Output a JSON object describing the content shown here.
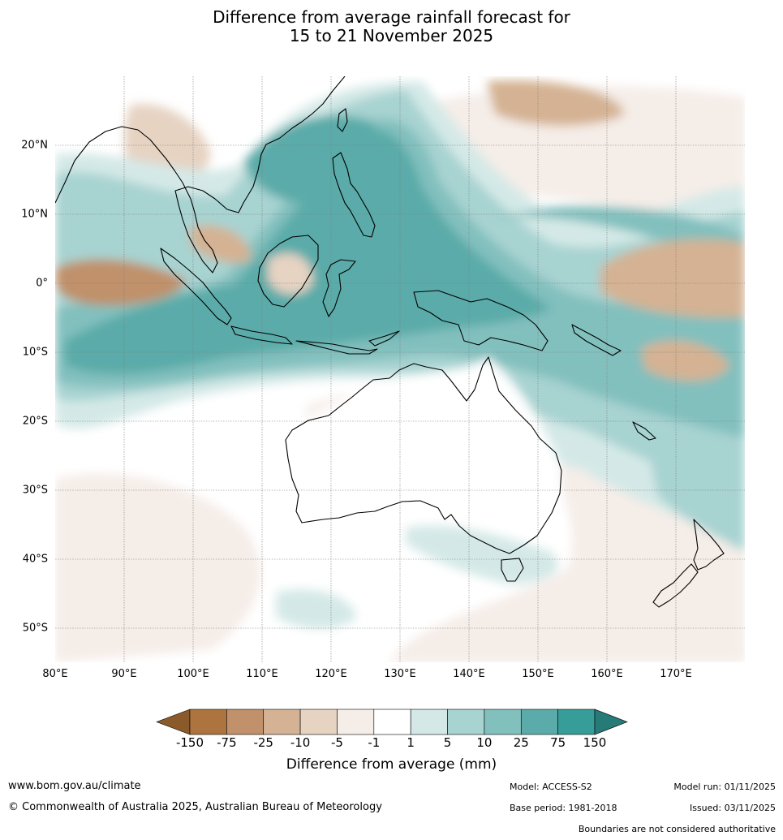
{
  "title": {
    "line1": "Difference from average rainfall forecast for",
    "line2": "15 to 21 November 2025"
  },
  "map": {
    "latitude_labels": [
      "20°N",
      "10°N",
      "0°",
      "10°S",
      "20°S",
      "30°S",
      "40°S",
      "50°S"
    ],
    "longitude_labels": [
      "80°E",
      "90°E",
      "100°E",
      "110°E",
      "120°E",
      "130°E",
      "140°E",
      "150°E",
      "160°E",
      "170°E"
    ]
  },
  "colorbar": {
    "label": "Difference from average (mm)",
    "ticks": [
      "-150",
      "-75",
      "-25",
      "-10",
      "-5",
      "-1",
      "1",
      "5",
      "10",
      "25",
      "75",
      "150"
    ],
    "colors": [
      "#8b5a2b",
      "#ad7440",
      "#c0916a",
      "#d4b293",
      "#e6d3c2",
      "#f5ede8",
      "#ffffff",
      "#d4e9e7",
      "#a7d3d1",
      "#82c0be",
      "#5aaba9",
      "#369d98",
      "#267a77"
    ]
  },
  "footer": {
    "website": "www.bom.gov.au/climate",
    "copyright": "© Commonwealth of Australia 2025, Australian Bureau of Meteorology",
    "model": "Model: ACCESS-S2",
    "base_period": "Base period: 1981-2018",
    "model_run": "Model run: 01/11/2025",
    "issued": "Issued: 03/11/2025",
    "boundaries_note": "Boundaries are not considered authoritative"
  }
}
